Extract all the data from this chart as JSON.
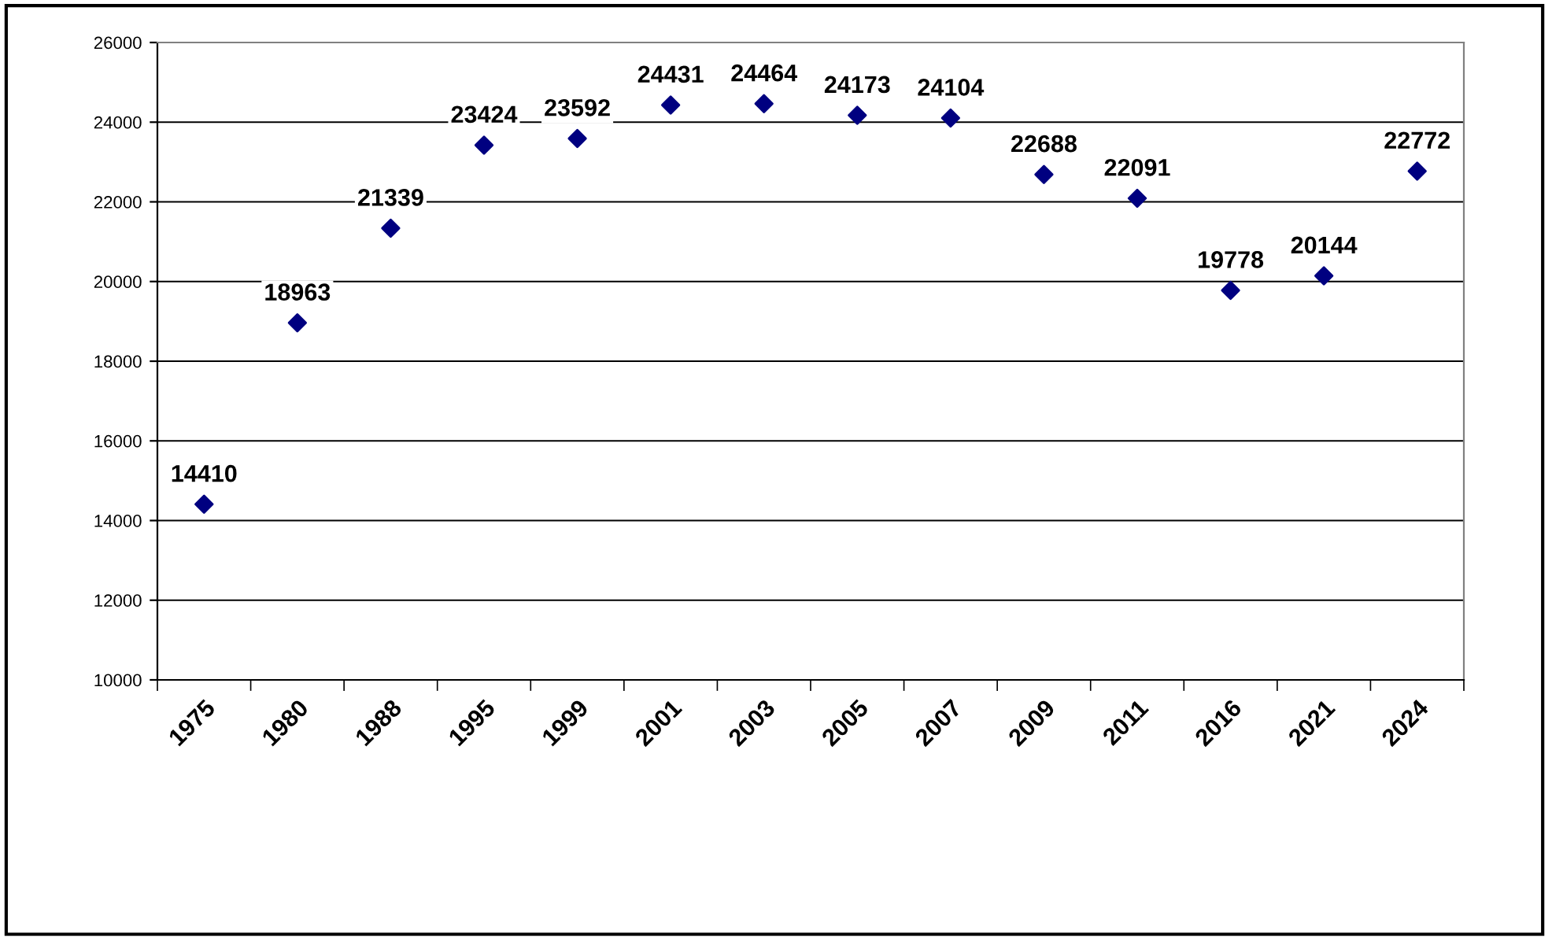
{
  "chart_data": {
    "type": "scatter",
    "categories": [
      "1975",
      "1980",
      "1988",
      "1995",
      "1999",
      "2001",
      "2003",
      "2005",
      "2007",
      "2009",
      "2011",
      "2016",
      "2021",
      "2024"
    ],
    "series": [
      {
        "color": "#000080",
        "values": [
          14410,
          18963,
          21339,
          23424,
          23592,
          24431,
          24464,
          24173,
          24104,
          22688,
          22091,
          19778,
          20144,
          22772
        ]
      }
    ],
    "ylim": [
      10000,
      26000
    ],
    "yticks": [
      10000,
      12000,
      14000,
      16000,
      18000,
      20000,
      22000,
      24000,
      26000
    ],
    "grid": "y",
    "marker": "diamond",
    "data_labels": true,
    "legend": false
  }
}
